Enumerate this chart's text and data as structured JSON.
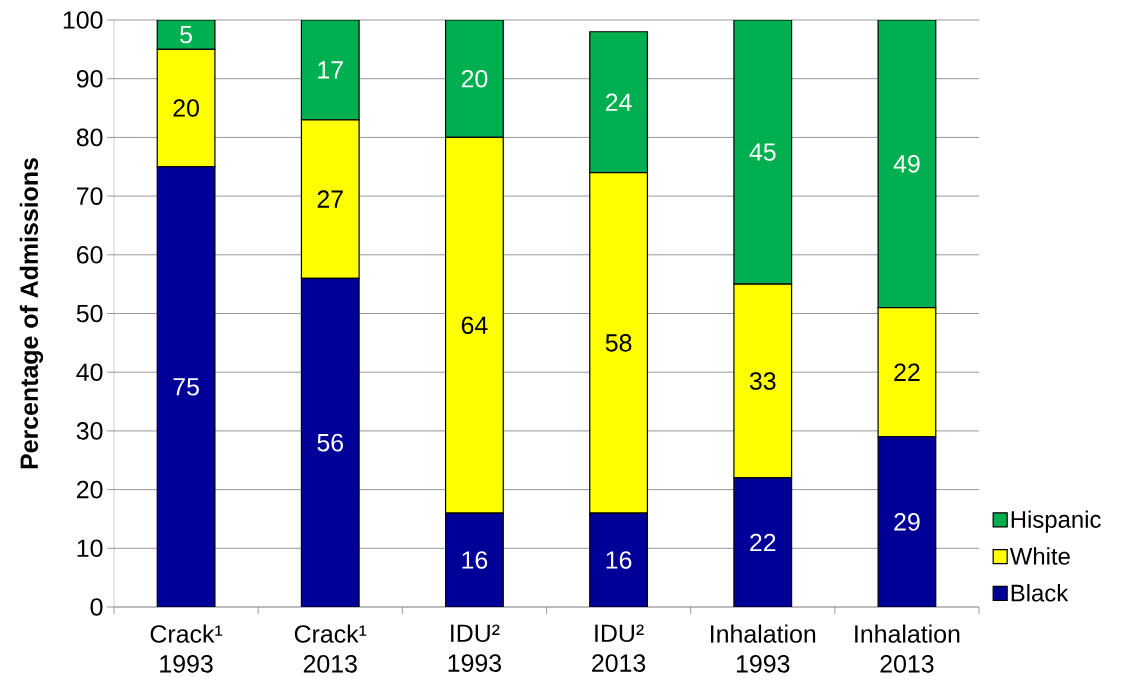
{
  "chart_data": {
    "type": "bar",
    "stacked": true,
    "categories": [
      "Crack¹ 1993",
      "Crack¹ 2013",
      "IDU² 1993",
      "IDU² 2013",
      "Inhalation 1993",
      "Inhalation 2013"
    ],
    "ylabel": "Percentage of Admissions",
    "ylim": [
      0,
      100
    ],
    "yticks": [
      0,
      10,
      20,
      30,
      40,
      50,
      60,
      70,
      80,
      90,
      100
    ],
    "grid": "y",
    "legend": "bottom right",
    "data_labels": true,
    "series": [
      {
        "name": "Black",
        "color": "#000099",
        "values": [
          75,
          56,
          16,
          16,
          22,
          29
        ]
      },
      {
        "name": "White",
        "color": "#ffff00",
        "values": [
          20,
          27,
          64,
          58,
          33,
          22
        ]
      },
      {
        "name": "Hispanic",
        "color": "#00b050",
        "values": [
          5,
          17,
          20,
          24,
          45,
          49
        ]
      }
    ]
  }
}
